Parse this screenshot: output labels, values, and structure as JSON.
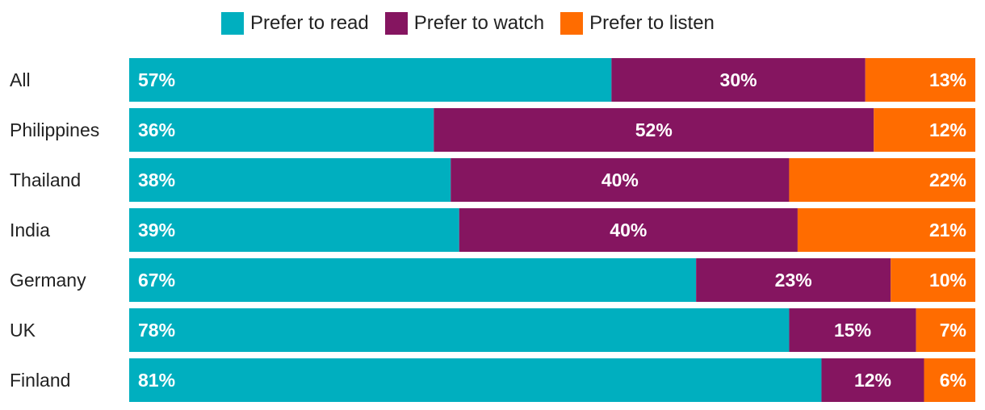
{
  "chart_data": {
    "type": "bar",
    "orientation": "horizontal",
    "stacked": true,
    "categories": [
      "All",
      "Philippines",
      "Thailand",
      "India",
      "Germany",
      "UK",
      "Finland"
    ],
    "series": [
      {
        "name": "Prefer to read",
        "color": "#00afbf",
        "values": [
          57,
          36,
          38,
          39,
          67,
          78,
          81
        ]
      },
      {
        "name": "Prefer to watch",
        "color": "#851560",
        "values": [
          30,
          52,
          40,
          40,
          23,
          15,
          12
        ]
      },
      {
        "name": "Prefer to listen",
        "color": "#ff6c00",
        "values": [
          13,
          12,
          22,
          21,
          10,
          7,
          6
        ]
      }
    ],
    "value_suffix": "%",
    "legend_position": "top",
    "grid": false
  }
}
